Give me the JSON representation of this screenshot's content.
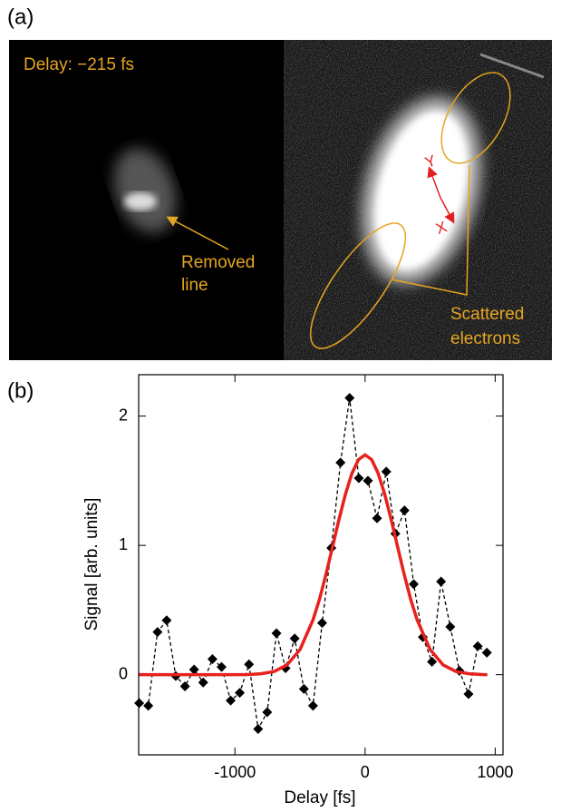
{
  "panel_a": {
    "label": "(a)",
    "delay": "Delay: −215 fs",
    "removed_line": [
      "Removed",
      "line"
    ],
    "scattered": [
      "Scattered",
      "electrons"
    ],
    "axis_y": "Y",
    "axis_x": "X"
  },
  "chart_data": {
    "type": "line",
    "label": "(b)",
    "x_label": "Delay [fs]",
    "y_label": "Signal [arb. units]",
    "xlim": [
      -1740,
      1060
    ],
    "ylim": [
      -0.62,
      2.32
    ],
    "xticks": [
      -1000,
      0,
      1000
    ],
    "yticks": [
      0,
      1,
      2
    ],
    "series": [
      {
        "color": "#000000",
        "line_style": "dashed",
        "marker": "diamond",
        "x": [
          -1736,
          -1666,
          -1595,
          -1525,
          -1455,
          -1384,
          -1314,
          -1244,
          -1173,
          -1103,
          -1033,
          -963,
          -892,
          -822,
          -752,
          -681,
          -611,
          -541,
          -470,
          -400,
          -330,
          -259,
          -189,
          -119,
          -48,
          22,
          92,
          163,
          233,
          303,
          374,
          444,
          514,
          584,
          655,
          725,
          795,
          866,
          936
        ],
        "values": [
          -0.22,
          -0.24,
          0.33,
          0.42,
          -0.01,
          -0.09,
          0.04,
          -0.06,
          0.12,
          0.06,
          -0.2,
          -0.14,
          0.08,
          -0.42,
          -0.29,
          0.32,
          0.05,
          0.28,
          -0.11,
          -0.24,
          0.4,
          0.98,
          1.64,
          2.14,
          1.52,
          1.5,
          1.21,
          1.57,
          1.09,
          1.27,
          0.7,
          0.29,
          0.1,
          0.72,
          0.37,
          0.03,
          -0.15,
          0.22,
          0.17
        ]
      },
      {
        "color": "#e8211d",
        "line_style": "solid",
        "marker": "none",
        "x": [
          -1740,
          -1600,
          -1400,
          -1200,
          -1000,
          -900,
          -800,
          -700,
          -600,
          -500,
          -400,
          -350,
          -300,
          -250,
          -200,
          -150,
          -100,
          -50,
          0,
          50,
          100,
          150,
          200,
          250,
          300,
          350,
          400,
          500,
          600,
          700,
          800,
          900,
          940
        ],
        "values": [
          0,
          0,
          0,
          0,
          0,
          0.001,
          0.007,
          0.024,
          0.075,
          0.194,
          0.424,
          0.584,
          0.778,
          0.989,
          1.202,
          1.399,
          1.559,
          1.664,
          1.7,
          1.664,
          1.559,
          1.399,
          1.202,
          0.989,
          0.778,
          0.584,
          0.424,
          0.194,
          0.075,
          0.024,
          0.007,
          0.001,
          0
        ]
      }
    ]
  }
}
